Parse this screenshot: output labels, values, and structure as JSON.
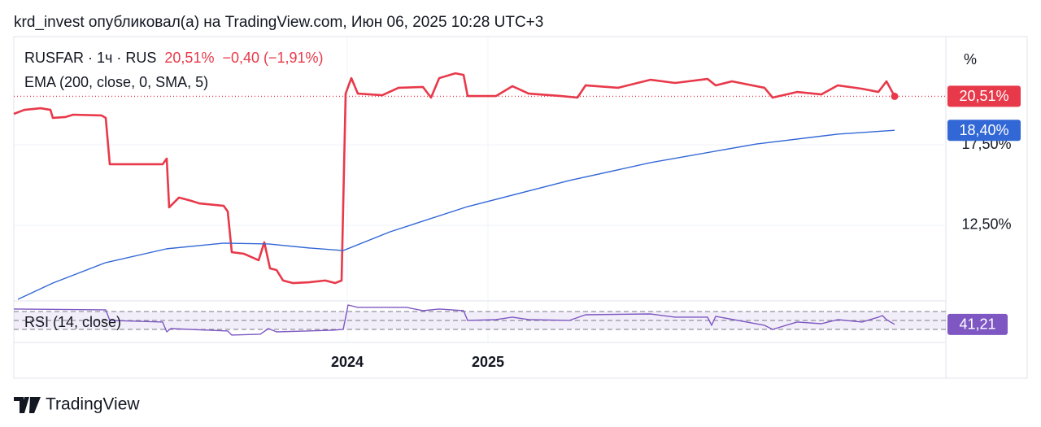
{
  "header": "krd_invest опубликовал(а) на TradingView.com, Июн 06, 2025 10:28 UTC+3",
  "footer": "TradingView",
  "chart_data": [
    {
      "type": "line",
      "scale_button": "%",
      "xlim": [
        0,
        1146
      ],
      "xticks": [
        {
          "value": 410,
          "label": "2024"
        },
        {
          "value": 583,
          "label": "2025"
        }
      ],
      "ylim": [
        7.8,
        24.22
      ],
      "yticks": [
        {
          "value": 12.5,
          "label": "12,50%"
        },
        {
          "value": 17.5,
          "label": "17,50%"
        }
      ],
      "grid": true,
      "series": [
        {
          "name": "RUSFAR · 1ч · RUS",
          "color": "#e8394a",
          "last_label": "20,51%",
          "change": "−0,40 (−1,91%)",
          "x": [
            0,
            13,
            33,
            45,
            48,
            63,
            73,
            108,
            113,
            118,
            153,
            183,
            188,
            191,
            203,
            218,
            228,
            258,
            263,
            268,
            283,
            301,
            308,
            315,
            323,
            331,
            343,
            363,
            383,
            395,
            403,
            408,
            415,
            423,
            453,
            473,
            503,
            513,
            523,
            543,
            553,
            558,
            593,
            613,
            633,
            673,
            693,
            703,
            743,
            783,
            813,
            853,
            863,
            883,
            923,
            933,
            963,
            993,
            1013,
            1043,
            1063,
            1073,
            1083
          ],
          "values": [
            19.42,
            19.67,
            19.77,
            19.67,
            19.17,
            19.22,
            19.37,
            19.32,
            19.17,
            16.29,
            16.29,
            16.29,
            16.64,
            13.61,
            14.22,
            14.02,
            13.86,
            13.71,
            13.36,
            10.83,
            10.73,
            10.33,
            11.44,
            9.82,
            9.72,
            9.07,
            8.91,
            8.96,
            9.07,
            8.91,
            9.07,
            20.68,
            21.64,
            20.68,
            20.58,
            21.04,
            21.09,
            20.43,
            21.64,
            21.94,
            21.84,
            20.53,
            20.53,
            21.14,
            20.68,
            20.53,
            20.43,
            21.19,
            21.04,
            21.54,
            21.34,
            21.59,
            21.19,
            21.44,
            21.04,
            20.43,
            20.78,
            20.63,
            21.19,
            20.98,
            20.78,
            21.44,
            20.51
          ]
        },
        {
          "name": "EMA (200, close, 0, SMA, 5)",
          "color": "#3267d6",
          "last_label": "18,40%",
          "x": [
            5,
            48,
            113,
            188,
            258,
            313,
            363,
            405,
            463,
            558,
            683,
            783,
            913,
            1013,
            1083
          ],
          "values": [
            7.9,
            8.91,
            10.18,
            11.04,
            11.39,
            11.34,
            11.09,
            10.93,
            12.1,
            13.66,
            15.28,
            16.39,
            17.55,
            18.16,
            18.4
          ]
        }
      ]
    },
    {
      "type": "line",
      "xlim": [
        0,
        1146
      ],
      "ylim": [
        2.7,
        93.6
      ],
      "levels": [
        70,
        50,
        30
      ],
      "series": [
        {
          "name": "RSI (14, close)",
          "color": "#7e57c2",
          "last_label": "41,21",
          "x": [
            0,
            113,
            118,
            183,
            188,
            193,
            263,
            268,
            303,
            313,
            323,
            393,
            405,
            411,
            423,
            483,
            503,
            523,
            553,
            558,
            593,
            613,
            633,
            683,
            703,
            783,
            813,
            853,
            858,
            863,
            923,
            933,
            963,
            993,
            1013,
            1043,
            1063,
            1068,
            1073,
            1083
          ],
          "values": [
            75.5,
            73.6,
            50,
            46.4,
            24.5,
            31.8,
            26.4,
            17.3,
            19.1,
            31.8,
            24.5,
            28.2,
            30,
            84.5,
            79.1,
            79.1,
            71.8,
            75.5,
            71.8,
            50,
            51.8,
            57.3,
            51.8,
            50,
            62.7,
            64.5,
            57.3,
            57.3,
            39.1,
            59.1,
            39.1,
            30,
            46.4,
            42.7,
            51.8,
            46.4,
            57.3,
            60.9,
            51.8,
            41.21
          ]
        }
      ]
    }
  ]
}
